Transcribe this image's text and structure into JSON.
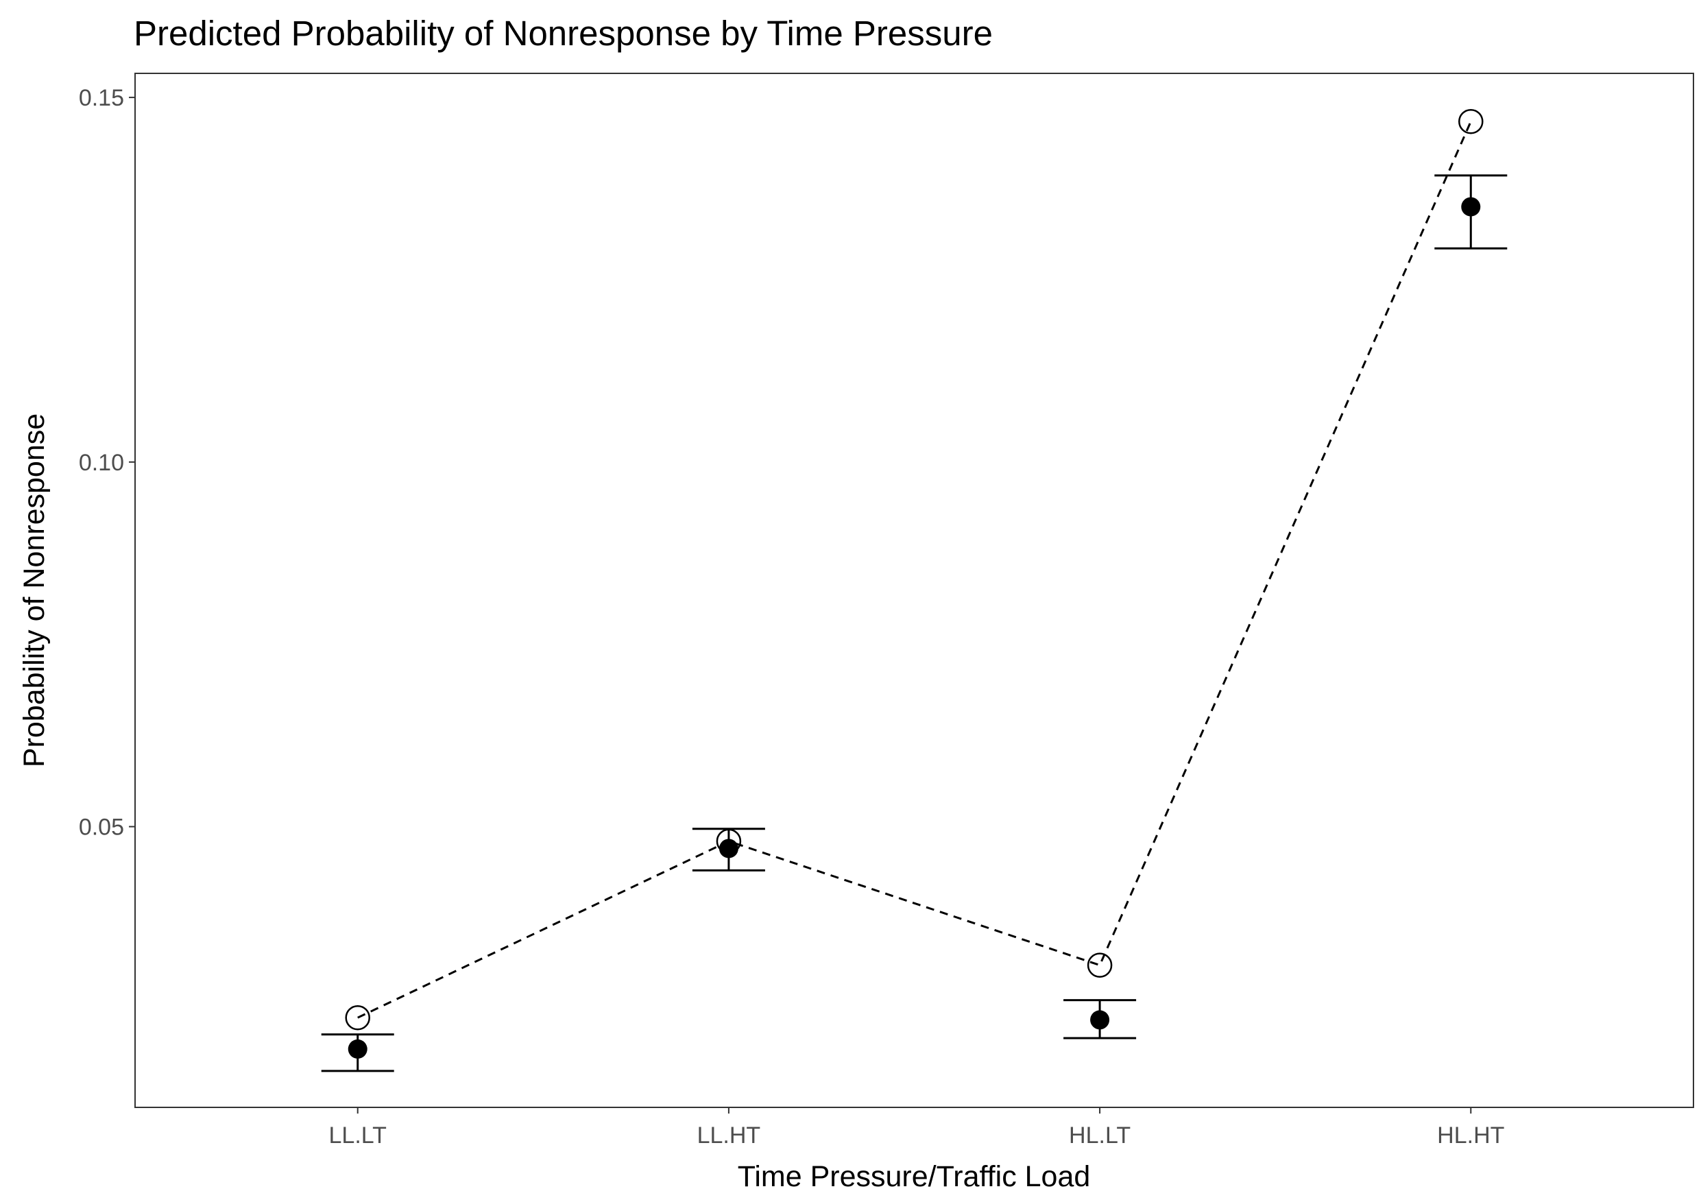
{
  "chart_data": {
    "type": "scatter",
    "title": "Predicted Probability of Nonresponse by Time Pressure",
    "xlabel": "Time Pressure/Traffic Load",
    "ylabel": "Probability of Nonresponse",
    "categories": [
      "LL.LT",
      "LL.HT",
      "HL.LT",
      "HL.HT"
    ],
    "ylim": [
      0.0115,
      0.1533
    ],
    "yticks": [
      0.05,
      0.1,
      0.15
    ],
    "ytick_labels": [
      "0.05",
      "0.10",
      "0.15"
    ],
    "grid": false,
    "series": [
      {
        "style": "filled-point-with-errorbar",
        "values": [
          0.0195,
          0.047,
          0.0235,
          0.135
        ],
        "lower": [
          0.0165,
          0.044,
          0.021,
          0.1293
        ],
        "upper": [
          0.0215,
          0.0497,
          0.0262,
          0.1393
        ]
      },
      {
        "style": "open-point-dashed-line",
        "values": [
          0.0238,
          0.048,
          0.031,
          0.1467
        ]
      }
    ],
    "colors": {
      "points": "#000000",
      "axis": "#333333",
      "tick_text": "#4d4d4d"
    }
  }
}
